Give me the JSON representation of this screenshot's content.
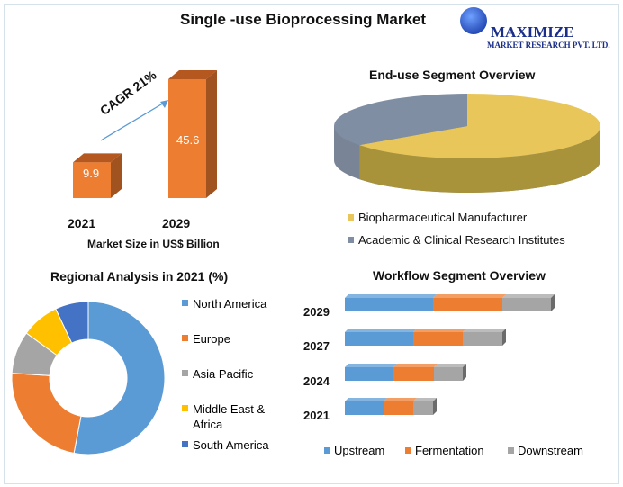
{
  "title": "Single -use Bioprocessing Market",
  "logo": {
    "name": "MAXIMIZE",
    "sub": "MARKET RESEARCH PVT. LTD."
  },
  "chart_data": [
    {
      "type": "bar",
      "title": "",
      "categories": [
        "2021",
        "2029"
      ],
      "values": [
        9.9,
        45.6
      ],
      "xlabel": "Market Size in US$ Billion",
      "annotation": "CAGR 21%",
      "color": "#ed7d31"
    },
    {
      "type": "pie",
      "title": "End-use  Segment Overview",
      "categories": [
        "Biopharmaceutical Manufacturer",
        "Academic & Clinical Research Institutes"
      ],
      "values": [
        65,
        35
      ],
      "colors": [
        "#e8c65a",
        "#7f8ea3"
      ],
      "legend": "bottom"
    },
    {
      "type": "pie",
      "donut": true,
      "title": "Regional Analysis in 2021 (%)",
      "categories": [
        "North America",
        "Europe",
        "Asia Pacific",
        "Middle East & Africa",
        "South America"
      ],
      "values": [
        53,
        23,
        9,
        8,
        7
      ],
      "colors": [
        "#5b9bd5",
        "#ed7d31",
        "#a5a5a5",
        "#ffc000",
        "#4472c4"
      ],
      "legend": "right"
    },
    {
      "type": "bar",
      "orientation": "horizontal",
      "stacked": true,
      "title": "Workflow  Segment Overview",
      "categories": [
        "2029",
        "2027",
        "2024",
        "2021"
      ],
      "series": [
        {
          "name": "Upstream",
          "values": [
            98,
            76,
            54,
            43
          ],
          "color": "#5b9bd5"
        },
        {
          "name": "Fermentation",
          "values": [
            77,
            55,
            45,
            33
          ],
          "color": "#ed7d31"
        },
        {
          "name": "Downstream",
          "values": [
            54,
            44,
            32,
            22
          ],
          "color": "#a5a5a5"
        }
      ],
      "legend": "bottom"
    }
  ]
}
